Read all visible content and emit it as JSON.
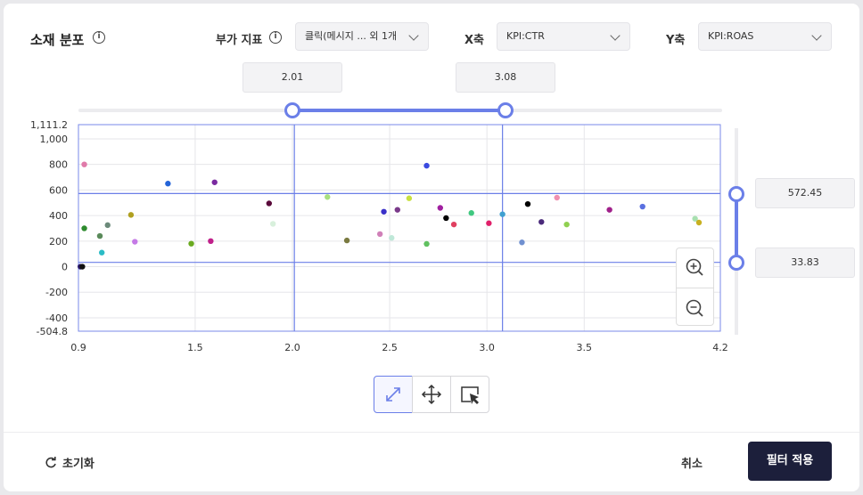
{
  "header": {
    "title": "소재 분포",
    "extra_metric_label": "부가 지표",
    "extra_metric_value": "클릭(메시지 ... 외 1개",
    "x_label": "X축",
    "x_value": "KPI:CTR",
    "y_label": "Y축",
    "y_value": "KPI:ROAS"
  },
  "x_range": {
    "min_text": "2.01",
    "max_text": "3.08",
    "min": 2.01,
    "max": 3.08
  },
  "y_range": {
    "max_text": "572.45",
    "min_text": "33.83",
    "min": 33.83,
    "max": 572.45
  },
  "footer": {
    "reset_label": "초기화",
    "cancel_label": "취소",
    "apply_label": "필터 적용"
  },
  "icons": {
    "info": "info-icon",
    "zoom_in": "zoom-in-icon",
    "zoom_out": "zoom-out-icon",
    "fit": "expand-icon",
    "pan": "move-icon",
    "select": "select-area-icon",
    "reset": "refresh-icon"
  },
  "colors": {
    "accent": "#6b7fe8",
    "apply_bg": "#1c1f3b"
  },
  "chart_data": {
    "type": "scatter",
    "xlim": [
      0.9,
      4.2
    ],
    "ylim": [
      -504.8,
      1111.2
    ],
    "x_ticks": [
      "0.9",
      "1.5",
      "2.0",
      "2.5",
      "3.0",
      "3.5",
      "4.2"
    ],
    "x_tick_values": [
      0.9,
      1.5,
      2.0,
      2.5,
      3.0,
      3.5,
      4.2
    ],
    "y_ticks": [
      "1,111.2",
      "1,000",
      "800",
      "600",
      "400",
      "200",
      "0",
      "-200",
      "-400",
      "-504.8"
    ],
    "y_tick_values": [
      1111.2,
      1000,
      800,
      600,
      400,
      200,
      0,
      -200,
      -400,
      -504.8
    ],
    "grid": true,
    "points": [
      {
        "x": 0.91,
        "y": 0,
        "color": "#2a1a6e"
      },
      {
        "x": 0.92,
        "y": 0,
        "color": "#111111"
      },
      {
        "x": 0.93,
        "y": 800,
        "color": "#e07aa9"
      },
      {
        "x": 0.93,
        "y": 300,
        "color": "#2e8b2e"
      },
      {
        "x": 1.01,
        "y": 240,
        "color": "#5a8a5a"
      },
      {
        "x": 1.02,
        "y": 110,
        "color": "#2bbcc6"
      },
      {
        "x": 1.05,
        "y": 325,
        "color": "#6c8a7a"
      },
      {
        "x": 1.17,
        "y": 405,
        "color": "#b0a020"
      },
      {
        "x": 1.19,
        "y": 195,
        "color": "#c57ae6"
      },
      {
        "x": 1.36,
        "y": 650,
        "color": "#2464d8"
      },
      {
        "x": 1.48,
        "y": 180,
        "color": "#6aaa20"
      },
      {
        "x": 1.58,
        "y": 200,
        "color": "#c0208a"
      },
      {
        "x": 1.6,
        "y": 660,
        "color": "#7a2aa0"
      },
      {
        "x": 1.88,
        "y": 495,
        "color": "#5a0a3a"
      },
      {
        "x": 1.9,
        "y": 335,
        "color": "#d8f0dc"
      },
      {
        "x": 2.18,
        "y": 545,
        "color": "#a8e080"
      },
      {
        "x": 2.28,
        "y": 205,
        "color": "#7a7a40"
      },
      {
        "x": 2.45,
        "y": 255,
        "color": "#d080b8"
      },
      {
        "x": 2.47,
        "y": 430,
        "color": "#3a30c8"
      },
      {
        "x": 2.51,
        "y": 225,
        "color": "#bfe8d8"
      },
      {
        "x": 2.54,
        "y": 445,
        "color": "#7a3a8a"
      },
      {
        "x": 2.6,
        "y": 535,
        "color": "#c8e040"
      },
      {
        "x": 2.69,
        "y": 790,
        "color": "#3a4ae0"
      },
      {
        "x": 2.69,
        "y": 178,
        "color": "#60c060"
      },
      {
        "x": 2.76,
        "y": 460,
        "color": "#a020a0"
      },
      {
        "x": 2.79,
        "y": 380,
        "color": "#000000"
      },
      {
        "x": 2.83,
        "y": 330,
        "color": "#e04060"
      },
      {
        "x": 2.92,
        "y": 420,
        "color": "#40c880"
      },
      {
        "x": 3.01,
        "y": 340,
        "color": "#e0206a"
      },
      {
        "x": 3.08,
        "y": 410,
        "color": "#40a0d0"
      },
      {
        "x": 3.18,
        "y": 190,
        "color": "#7090d0"
      },
      {
        "x": 3.21,
        "y": 490,
        "color": "#000000"
      },
      {
        "x": 3.28,
        "y": 350,
        "color": "#4a2a7a"
      },
      {
        "x": 3.36,
        "y": 540,
        "color": "#f090b0"
      },
      {
        "x": 3.41,
        "y": 330,
        "color": "#90d050"
      },
      {
        "x": 3.63,
        "y": 445,
        "color": "#a0208a"
      },
      {
        "x": 3.8,
        "y": 470,
        "color": "#5a70e0"
      },
      {
        "x": 4.07,
        "y": 375,
        "color": "#a8e0b0"
      },
      {
        "x": 4.09,
        "y": 345,
        "color": "#c8b020"
      }
    ]
  }
}
